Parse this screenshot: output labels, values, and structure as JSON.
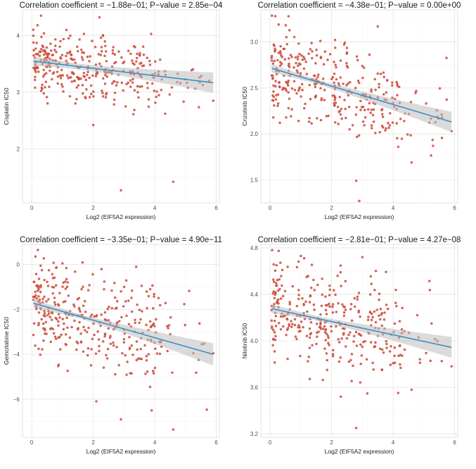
{
  "chart_data": [
    {
      "type": "scatter",
      "id": "cisplatin",
      "title": "Correlation coefficient = −1.88e−01; P−value = 2.85e−04",
      "xlabel": "Log2 (EIF5A2 expression)",
      "ylabel": "Cisplatin IC50",
      "xlim": [
        -0.3,
        6.1
      ],
      "ylim": [
        1.05,
        4.45
      ],
      "xticks": [
        0,
        2,
        4,
        6
      ],
      "yticks": [
        2,
        3,
        4
      ],
      "grid": true,
      "fit": {
        "intercept": 3.55,
        "slope": -0.065,
        "x_range": [
          0.05,
          5.9
        ],
        "ci": [
          0.05,
          0.18
        ]
      },
      "y_center": 3.45,
      "y_spread": 0.3,
      "outliers": [
        [
          2.2,
          4.32
        ],
        [
          0.05,
          4.1
        ],
        [
          2.9,
          1.27
        ],
        [
          4.6,
          1.42
        ],
        [
          2.0,
          2.42
        ],
        [
          5.9,
          2.85
        ]
      ],
      "n_points": 340
    },
    {
      "type": "scatter",
      "id": "crizotinib",
      "title": "Correlation coefficient = −4.38e−01; P−value = 0.00e+00",
      "xlabel": "Log2 (EIF5A2 expression)",
      "ylabel": "Crizotinib IC50",
      "xlim": [
        -0.3,
        6.1
      ],
      "ylim": [
        1.25,
        3.35
      ],
      "xticks": [
        0,
        2,
        4,
        6
      ],
      "yticks": [
        1.5,
        2.0,
        2.5,
        3.0
      ],
      "grid": true,
      "fit": {
        "intercept": 2.72,
        "slope": -0.1,
        "x_range": [
          0.05,
          5.9
        ],
        "ci": [
          0.025,
          0.11
        ]
      },
      "y_center": 2.55,
      "y_spread": 0.23,
      "outliers": [
        [
          0.6,
          3.28
        ],
        [
          3.5,
          3.17
        ],
        [
          2.8,
          1.49
        ],
        [
          4.6,
          1.69
        ],
        [
          2.9,
          1.27
        ],
        [
          5.9,
          2.03
        ]
      ],
      "n_points": 340
    },
    {
      "type": "scatter",
      "id": "gemcitabine",
      "title": "Correlation coefficient = −3.35e−01; P−value = 4.90e−11",
      "xlabel": "Log2 (EIF5A2 expression)",
      "ylabel": "Gemcitabine IC50",
      "xlim": [
        -0.3,
        6.1
      ],
      "ylim": [
        -7.7,
        0.9
      ],
      "xticks": [
        0,
        2,
        4,
        6
      ],
      "yticks": [
        -6,
        -4,
        -2,
        0
      ],
      "grid": true,
      "fit": {
        "intercept": -1.7,
        "slope": -0.39,
        "x_range": [
          0.05,
          5.9
        ],
        "ci": [
          0.1,
          0.5
        ]
      },
      "y_center": -2.4,
      "y_spread": 1.1,
      "outliers": [
        [
          0.2,
          0.65
        ],
        [
          4.6,
          -7.35
        ],
        [
          2.9,
          -6.9
        ],
        [
          3.9,
          -6.5
        ],
        [
          2.1,
          -6.1
        ],
        [
          5.9,
          -3.95
        ]
      ],
      "n_points": 340
    },
    {
      "type": "scatter",
      "id": "nilotinib",
      "title": "Correlation coefficient = −2.81e−01; P−value = 4.27e−08",
      "xlabel": "Log2 (EIF5A2 expression)",
      "ylabel": "Nilotinib IC50",
      "xlim": [
        -0.3,
        6.1
      ],
      "ylim": [
        3.17,
        4.83
      ],
      "xticks": [
        0,
        2,
        4,
        6
      ],
      "yticks": [
        3.2,
        3.6,
        4.0,
        4.4,
        4.8
      ],
      "grid": true,
      "fit": {
        "intercept": 4.28,
        "slope": -0.057,
        "x_range": [
          0.05,
          5.9
        ],
        "ci": [
          0.02,
          0.09
        ]
      },
      "y_center": 4.17,
      "y_spread": 0.22,
      "outliers": [
        [
          2.8,
          3.25
        ],
        [
          1.0,
          4.73
        ],
        [
          3.0,
          4.72
        ],
        [
          4.6,
          3.58
        ],
        [
          5.9,
          3.78
        ],
        [
          2.3,
          3.52
        ]
      ],
      "n_points": 340
    }
  ]
}
